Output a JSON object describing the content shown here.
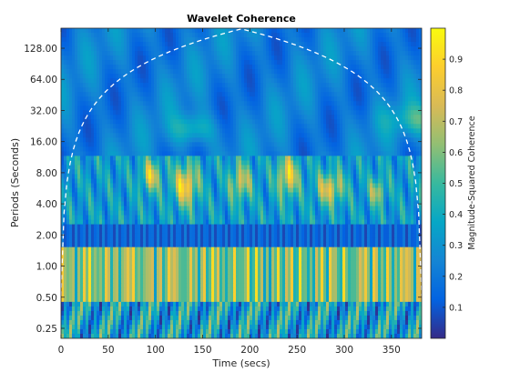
{
  "chart_data": {
    "type": "heatmap",
    "title": "Wavelet Coherence",
    "xlabel": "Time (secs)",
    "ylabel": "Periods (Seconds)",
    "xlim": [
      0,
      382
    ],
    "xticks": [
      0,
      50,
      100,
      150,
      200,
      250,
      300,
      350
    ],
    "yscale": "log2",
    "ylim": [
      0.2,
      200
    ],
    "yticks": [
      0.25,
      0.5,
      1,
      2,
      4,
      8,
      16,
      32,
      64,
      128
    ],
    "ytick_labels": [
      "0.25",
      "0.50",
      "1.00",
      "2.00",
      "4.00",
      "8.00",
      "16.00",
      "32.00",
      "64.00",
      "128.00"
    ],
    "colorbar": {
      "label": "Magnitude-Squared Coherence",
      "range": [
        0,
        1
      ],
      "ticks": [
        0.1,
        0.2,
        0.3,
        0.4,
        0.5,
        0.6,
        0.7,
        0.8,
        0.9
      ],
      "colormap": "parula",
      "colors": [
        "#352a87",
        "#0363e1",
        "#1485d4",
        "#06a7c6",
        "#38b99e",
        "#92bf73",
        "#d9ba56",
        "#fcce2e",
        "#f9fb0e"
      ]
    },
    "cone_of_influence": "white dashed line",
    "bands": [
      {
        "period_range": [
          0.2,
          1.5
        ],
        "coherence": "high (0.7-0.9), rapidly alternating"
      },
      {
        "period_range": [
          1.5,
          2.5
        ],
        "coherence": "low (0.1-0.2)"
      },
      {
        "period_range": [
          2.5,
          12
        ],
        "coherence": "mixed with blobs near 0.8-0.9"
      },
      {
        "period_range": [
          12,
          200
        ],
        "coherence": "mostly low (0.1-0.4)"
      }
    ]
  }
}
